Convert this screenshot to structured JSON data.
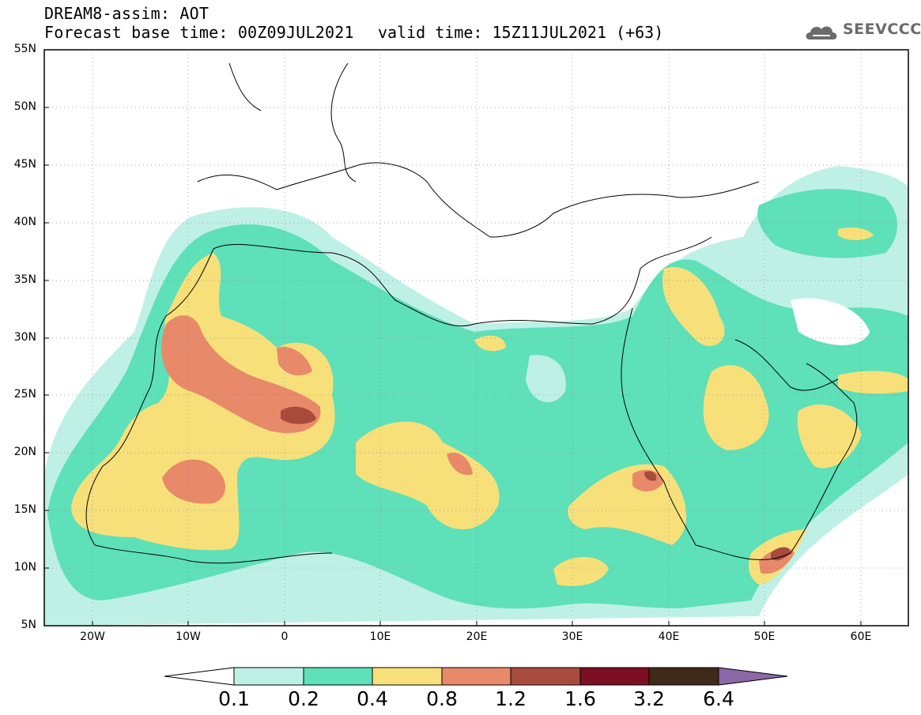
{
  "header": {
    "title": "DREAM8-assim: AOT",
    "base_time": "Forecast base time: 00Z09JUL2021",
    "valid_time": "valid time: 15Z11JUL2021 (+63)",
    "logo_text": "SEEVCCC"
  },
  "map": {
    "lat_labels": [
      "55N",
      "50N",
      "45N",
      "40N",
      "35N",
      "30N",
      "25N",
      "20N",
      "15N",
      "10N",
      "5N"
    ],
    "lon_labels": [
      "20W",
      "10W",
      "0",
      "10E",
      "20E",
      "30E",
      "40E",
      "50E",
      "60E"
    ]
  },
  "legend": {
    "levels": [
      "0.1",
      "0.2",
      "0.4",
      "0.8",
      "1.2",
      "1.6",
      "3.2",
      "6.4"
    ],
    "colors": [
      "#ffffff",
      "#bff0e6",
      "#5ee0b8",
      "#f7e07a",
      "#e8896a",
      "#a84b3c",
      "#7d0f24",
      "#3f2a1a",
      "#8c68a8"
    ]
  }
}
